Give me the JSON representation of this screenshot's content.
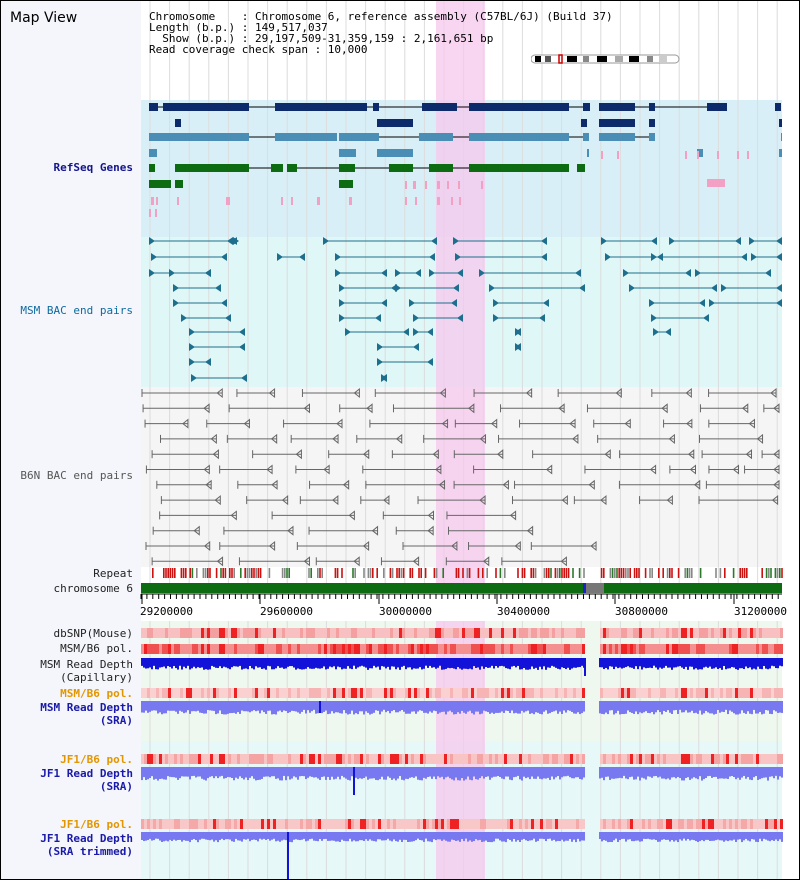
{
  "title": "Map View",
  "info": {
    "chromosome": "Chromosome    : Chromosome 6, reference assembly (C57BL/6J) (Build 37)",
    "length": "Length (b.p.) : 149,517,037",
    "show": "  Show (b.p.) : 29,197,509-31,359,159 : 2,161,651 bp",
    "coverage": "Read coverage check span : 10,000"
  },
  "labels": {
    "refseq": "RefSeq Genes",
    "msm_bac": "MSM BAC end pairs",
    "b6n_bac": "B6N BAC end pairs",
    "repeat": "Repeat",
    "chromosome": "chromosome 6",
    "dbsnp": "dbSNP(Mouse)",
    "msm_b6_pol_1": "MSM/B6 pol.",
    "msm_read_depth_cap_1": "MSM Read Depth",
    "msm_read_depth_cap_2": "(Capillary)",
    "msm_b6_pol_2": "MSM/B6 pol.",
    "msm_read_depth_sra_1": "MSM Read Depth",
    "msm_read_depth_sra_2": "(SRA)",
    "jf1_b6_pol_1": "JF1/B6 pol.",
    "jf1_read_depth_sra_1": "JF1 Read Depth",
    "jf1_read_depth_sra_2": "(SRA)",
    "jf1_b6_pol_2": "JF1/B6 pol.",
    "jf1_read_depth_trim_1": "JF1 Read Depth",
    "jf1_read_depth_trim_2": "(SRA trimmed)"
  },
  "axis": {
    "ticks": [
      "29200000",
      "29600000",
      "30000000",
      "30400000",
      "30800000",
      "31200000"
    ],
    "range_start": 29197509,
    "range_end": 31359159
  },
  "colors": {
    "refseq_bg": "#d9eff8",
    "msm_bg": "#e0f7f7",
    "b6n_bg": "#f5f5f5",
    "highlight": "#f6c8ee",
    "gene_navy": "#0d2a6a",
    "gene_blue": "#4a8db5",
    "gene_green": "#0d6b12",
    "gene_pink": "#f2a0c4",
    "msm_teal": "#1e6f8e",
    "b6n_gray": "#666666",
    "chrom_green": "#0d6b12",
    "depth_blue": "#1212d8",
    "depth_light": "#7878f0",
    "pol_red": "#ef4a4a",
    "pol_pink": "#f8b8b8"
  }
}
